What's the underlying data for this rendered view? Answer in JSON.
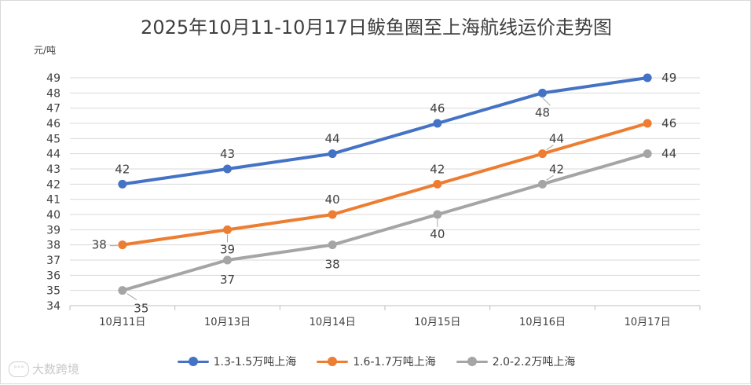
{
  "chart_data": {
    "type": "line",
    "title": "2025年10月11-10月17日鲅鱼圈至上海航线运价走势图",
    "ylabel": "元/吨",
    "xlabel": "",
    "categories": [
      "10月11日",
      "10月13日",
      "10月14日",
      "10月15日",
      "10月16日",
      "10月17日"
    ],
    "ylim": [
      34,
      49
    ],
    "yticks": [
      "34",
      "35",
      "36",
      "37",
      "38",
      "39",
      "40",
      "41",
      "42",
      "43",
      "44",
      "45",
      "46",
      "47",
      "48",
      "49"
    ],
    "grid": true,
    "legend_position": "bottom",
    "series": [
      {
        "name": "1.3-1.5万吨上海",
        "values": [
          42,
          43,
          44,
          46,
          48,
          49
        ],
        "color": "#4472c4"
      },
      {
        "name": "1.6-1.7万吨上海",
        "values": [
          38,
          39,
          40,
          42,
          44,
          46
        ],
        "color": "#ed7d31"
      },
      {
        "name": "2.0-2.2万吨上海",
        "values": [
          35,
          37,
          38,
          40,
          42,
          44
        ],
        "color": "#a5a5a5"
      }
    ]
  },
  "watermark": {
    "icon": "speech-bubble-icon",
    "icon_text": "°°°",
    "text": "大数跨境"
  }
}
